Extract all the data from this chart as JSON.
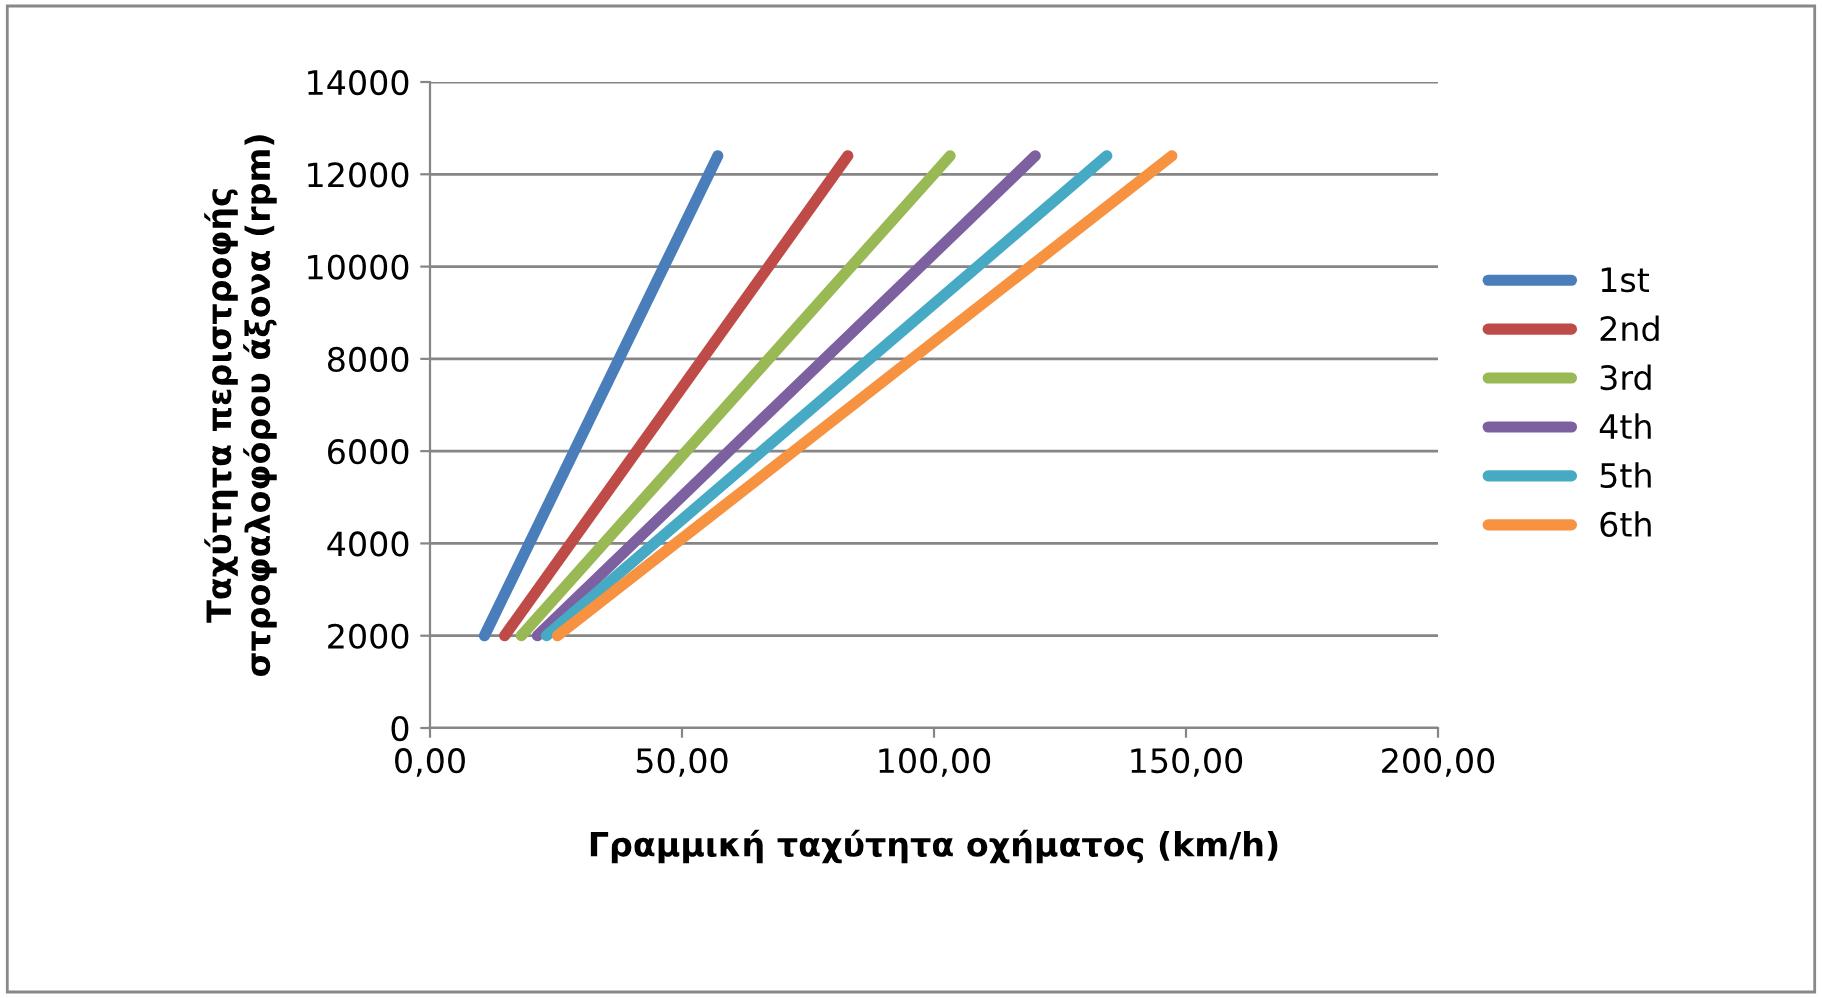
{
  "chart_data": {
    "type": "line",
    "xlabel": "Γραμμική ταχύτητα οχήματος (km/h)",
    "ylabel": "Ταχύτητα περιστροφής\nστροφαλοφόρου άξονα (rpm)",
    "series": [
      {
        "name": "1st",
        "color": "#4a7ebb",
        "x": [
          10.8,
          57.1
        ],
        "values": [
          2000,
          12400
        ]
      },
      {
        "name": "2nd",
        "color": "#be4b48",
        "x": [
          14.8,
          82.9
        ],
        "values": [
          2000,
          12400
        ]
      },
      {
        "name": "3rd",
        "color": "#98b954",
        "x": [
          18.1,
          103.2
        ],
        "values": [
          2000,
          12400
        ]
      },
      {
        "name": "4th",
        "color": "#7d60a0",
        "x": [
          21.3,
          120.1
        ],
        "values": [
          2000,
          12400
        ]
      },
      {
        "name": "5th",
        "color": "#46aac5",
        "x": [
          23.1,
          134.3
        ],
        "values": [
          2000,
          12400
        ]
      },
      {
        "name": "6th",
        "color": "#f69240",
        "x": [
          25.3,
          147.2
        ],
        "values": [
          2000,
          12400
        ]
      }
    ],
    "xlim": [
      0,
      200
    ],
    "xticks": [
      {
        "value": 0,
        "label": "0,00"
      },
      {
        "value": 50,
        "label": "50,00"
      },
      {
        "value": 100,
        "label": "100,00"
      },
      {
        "value": 150,
        "label": "150,00"
      },
      {
        "value": 200,
        "label": "200,00"
      }
    ],
    "ylim": [
      0,
      14000
    ],
    "yticks": [
      0,
      2000,
      4000,
      6000,
      8000,
      10000,
      12000,
      14000
    ],
    "grid": "y",
    "legend": "right",
    "marker": "none",
    "line_style": "solid"
  }
}
